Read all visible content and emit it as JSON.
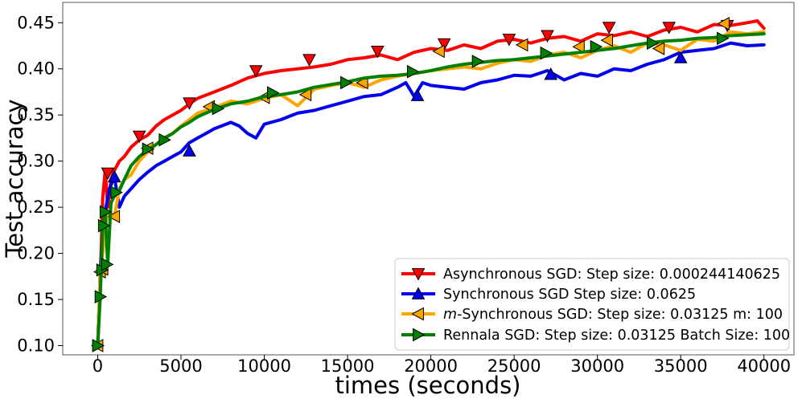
{
  "chart_data": {
    "type": "line",
    "xlabel": "times (seconds)",
    "ylabel": "Test accuracy",
    "xlim": [
      -2100,
      41800
    ],
    "ylim": [
      0.09,
      0.472
    ],
    "xticks": [
      0,
      5000,
      10000,
      15000,
      20000,
      25000,
      30000,
      35000,
      40000
    ],
    "xtick_labels": [
      "0",
      "5000",
      "10000",
      "15000",
      "20000",
      "25000",
      "30000",
      "35000",
      "40000"
    ],
    "yticks": [
      0.1,
      0.15,
      0.2,
      0.25,
      0.3,
      0.35,
      0.4,
      0.45
    ],
    "ytick_labels": [
      "0.10",
      "0.15",
      "0.20",
      "0.25",
      "0.30",
      "0.35",
      "0.40",
      "0.45"
    ],
    "grid": false,
    "legend_position": "lower-right",
    "series": [
      {
        "name": "Asynchronous SGD: Step size: 0.000244140625",
        "color": "#ff0000",
        "marker": "triangle-down",
        "x": [
          0,
          150,
          300,
          450,
          600,
          800,
          1000,
          1300,
          1600,
          2000,
          2500,
          3000,
          3500,
          4000,
          4500,
          5000,
          5500,
          6000,
          7000,
          8000,
          9000,
          10000,
          11000,
          12000,
          13000,
          14000,
          15000,
          16000,
          17000,
          18000,
          19000,
          20000,
          21000,
          22000,
          23000,
          24000,
          25000,
          26000,
          27000,
          28000,
          29000,
          30000,
          31000,
          32000,
          33000,
          34000,
          35000,
          36000,
          37000,
          38000,
          39000,
          39600,
          40000
        ],
        "y": [
          0.1,
          0.17,
          0.26,
          0.29,
          0.25,
          0.28,
          0.29,
          0.3,
          0.305,
          0.315,
          0.323,
          0.328,
          0.338,
          0.345,
          0.35,
          0.355,
          0.362,
          0.368,
          0.375,
          0.382,
          0.39,
          0.395,
          0.398,
          0.4,
          0.402,
          0.405,
          0.41,
          0.412,
          0.415,
          0.41,
          0.418,
          0.422,
          0.42,
          0.426,
          0.422,
          0.43,
          0.432,
          0.428,
          0.433,
          0.435,
          0.43,
          0.438,
          0.436,
          0.44,
          0.435,
          0.442,
          0.445,
          0.44,
          0.448,
          0.447,
          0.45,
          0.452,
          0.444
        ],
        "marker_x": [
          600,
          2500,
          5500,
          9500,
          12700,
          16800,
          20800,
          24700,
          27000,
          30700,
          34300,
          37800
        ],
        "marker_y": [
          0.287,
          0.327,
          0.363,
          0.398,
          0.41,
          0.419,
          0.427,
          0.432,
          0.436,
          0.445,
          0.445,
          0.447
        ]
      },
      {
        "name": "Synchronous SGD Step size: 0.0625",
        "color": "#0000ee",
        "marker": "triangle-up",
        "x": [
          0,
          150,
          300,
          500,
          700,
          1000,
          1300,
          1600,
          2000,
          2500,
          3000,
          3500,
          4000,
          4500,
          5000,
          5500,
          6000,
          7000,
          8000,
          8500,
          9000,
          9500,
          10000,
          11000,
          12000,
          13000,
          14000,
          15000,
          16000,
          17000,
          18000,
          18500,
          19000,
          19500,
          20000,
          21000,
          22000,
          23000,
          24000,
          25000,
          26000,
          27000,
          28000,
          29000,
          30000,
          31000,
          32000,
          33000,
          34000,
          35000,
          36000,
          37000,
          38000,
          39000,
          40000
        ],
        "y": [
          0.1,
          0.18,
          0.22,
          0.25,
          0.27,
          0.283,
          0.25,
          0.262,
          0.27,
          0.28,
          0.288,
          0.295,
          0.3,
          0.305,
          0.31,
          0.32,
          0.325,
          0.335,
          0.342,
          0.338,
          0.33,
          0.325,
          0.34,
          0.345,
          0.352,
          0.355,
          0.36,
          0.365,
          0.37,
          0.372,
          0.38,
          0.385,
          0.37,
          0.385,
          0.382,
          0.38,
          0.378,
          0.385,
          0.388,
          0.393,
          0.392,
          0.398,
          0.388,
          0.395,
          0.392,
          0.4,
          0.398,
          0.405,
          0.41,
          0.418,
          0.42,
          0.422,
          0.428,
          0.425,
          0.426
        ],
        "marker_x": [
          1000,
          5500,
          19200,
          27200,
          35000
        ],
        "marker_y": [
          0.283,
          0.311,
          0.371,
          0.394,
          0.412
        ]
      },
      {
        "name": "m-Synchronous  SGD: Step size: 0.03125 m: 100",
        "color": "#ffa500",
        "marker": "triangle-left",
        "x": [
          0,
          150,
          300,
          500,
          700,
          1000,
          1300,
          1600,
          2000,
          2500,
          3000,
          3500,
          4000,
          4500,
          5000,
          5500,
          6000,
          7000,
          8000,
          9000,
          10000,
          11000,
          12000,
          13000,
          14000,
          15000,
          16000,
          17000,
          18000,
          19000,
          20000,
          21000,
          22000,
          23000,
          24000,
          25000,
          26000,
          27000,
          28000,
          29000,
          30000,
          31000,
          32000,
          33000,
          34000,
          35000,
          36000,
          37000,
          38000,
          39000,
          40000
        ],
        "y": [
          0.1,
          0.18,
          0.2,
          0.235,
          0.245,
          0.24,
          0.27,
          0.28,
          0.285,
          0.3,
          0.31,
          0.318,
          0.325,
          0.33,
          0.338,
          0.345,
          0.352,
          0.358,
          0.365,
          0.362,
          0.368,
          0.372,
          0.36,
          0.378,
          0.382,
          0.385,
          0.38,
          0.388,
          0.392,
          0.395,
          0.398,
          0.4,
          0.402,
          0.4,
          0.406,
          0.41,
          0.408,
          0.415,
          0.418,
          0.412,
          0.42,
          0.425,
          0.418,
          0.428,
          0.426,
          0.42,
          0.432,
          0.43,
          0.44,
          0.438,
          0.44
        ],
        "marker_x": [
          0,
          150,
          300,
          1000,
          3000,
          6700,
          10000,
          12500,
          15900,
          20500,
          25500,
          28900,
          30600,
          33700,
          37600
        ],
        "marker_y": [
          0.1,
          0.18,
          0.183,
          0.24,
          0.314,
          0.359,
          0.369,
          0.372,
          0.385,
          0.419,
          0.426,
          0.424,
          0.431,
          0.422,
          0.449
        ]
      },
      {
        "name": "Rennala SGD: Step size: 0.03125 Batch Size: 100",
        "color": "#008000",
        "marker": "triangle-right",
        "x": [
          0,
          150,
          300,
          450,
          600,
          800,
          1000,
          1300,
          1600,
          2000,
          2500,
          3000,
          3500,
          4000,
          4500,
          5000,
          5500,
          6000,
          7000,
          8000,
          9000,
          10000,
          11000,
          12000,
          13000,
          14000,
          15000,
          16000,
          17000,
          18000,
          19000,
          20000,
          21000,
          22000,
          23000,
          24000,
          25000,
          26000,
          27000,
          28000,
          29000,
          30000,
          31000,
          32000,
          33000,
          34000,
          35000,
          36000,
          37000,
          38000,
          39000,
          40000
        ],
        "y": [
          0.1,
          0.153,
          0.23,
          0.245,
          0.188,
          0.255,
          0.262,
          0.268,
          0.28,
          0.295,
          0.305,
          0.312,
          0.318,
          0.325,
          0.33,
          0.337,
          0.342,
          0.348,
          0.356,
          0.362,
          0.365,
          0.37,
          0.372,
          0.375,
          0.38,
          0.383,
          0.386,
          0.39,
          0.392,
          0.393,
          0.395,
          0.398,
          0.402,
          0.405,
          0.407,
          0.409,
          0.41,
          0.412,
          0.414,
          0.416,
          0.418,
          0.42,
          0.422,
          0.425,
          0.428,
          0.43,
          0.431,
          0.433,
          0.434,
          0.436,
          0.437,
          0.438
        ],
        "marker_x": [
          0,
          150,
          250,
          350,
          450,
          550,
          1100,
          3000,
          4000,
          7200,
          10500,
          14900,
          18900,
          22800,
          26900,
          29900,
          33300,
          37500
        ],
        "marker_y": [
          0.1,
          0.153,
          0.182,
          0.23,
          0.245,
          0.188,
          0.266,
          0.313,
          0.323,
          0.357,
          0.374,
          0.385,
          0.397,
          0.408,
          0.417,
          0.424,
          0.428,
          0.433
        ]
      }
    ]
  }
}
